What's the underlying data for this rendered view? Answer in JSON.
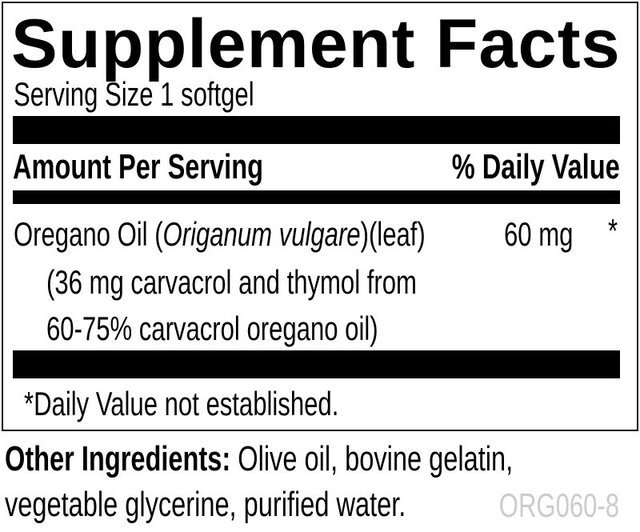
{
  "title": "Supplement Facts",
  "serving_size": "Serving Size 1 softgel",
  "header": {
    "amount": "Amount Per Serving",
    "daily_value": "% Daily Value"
  },
  "ingredients": [
    {
      "name_prefix": "Oregano Oil (",
      "latin": "Origanum vulgare",
      "name_suffix": ")(leaf)",
      "amount": "60 mg",
      "dv": "*",
      "detail_lines": [
        "(36 mg carvacrol and thymol from",
        "60-75% carvacrol oregano oil)"
      ]
    }
  ],
  "footnote": "*Daily Value not established.",
  "other_ingredients": {
    "label": "Other Ingredients:",
    "line1": " Olive oil, bovine gelatin,",
    "line2": "vegetable glycerine, purified water."
  },
  "code": "ORG060-8",
  "colors": {
    "text": "#000000",
    "code": "#cccccc"
  }
}
